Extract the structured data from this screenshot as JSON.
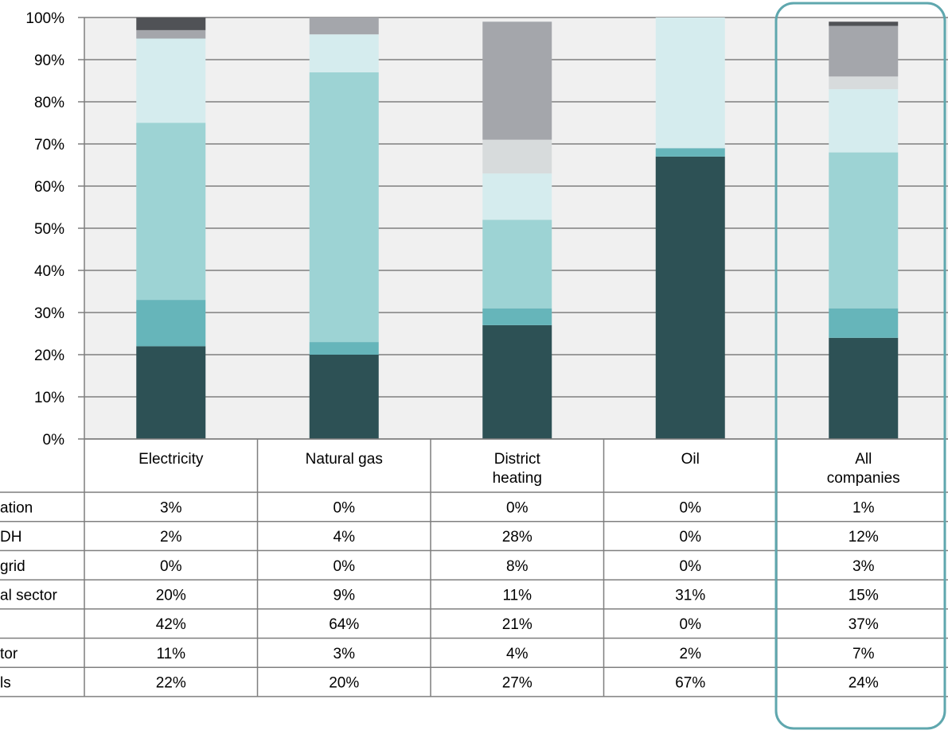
{
  "chart_data": {
    "type": "bar",
    "stacked": true,
    "categories": [
      "Electricity",
      "Natural gas",
      "District heating",
      "Oil",
      "All companies"
    ],
    "category_lines": [
      [
        "Electricity"
      ],
      [
        "Natural gas"
      ],
      [
        "District",
        "heating"
      ],
      [
        "Oil"
      ],
      [
        "All",
        "companies"
      ]
    ],
    "ylim": [
      0,
      100
    ],
    "y_ticks": [
      "0%",
      "10%",
      "20%",
      "30%",
      "40%",
      "50%",
      "60%",
      "70%",
      "80%",
      "90%",
      "100%"
    ],
    "grid": true,
    "highlight_category": "All companies",
    "series_bottom_to_top": [
      {
        "label": "ls",
        "color": "#2d5155",
        "values": [
          22,
          20,
          27,
          67,
          24
        ],
        "shown": [
          "22%",
          "20%",
          "27%",
          "67%",
          "24%"
        ]
      },
      {
        "label": "tor",
        "color": "#66b5ba",
        "values": [
          11,
          3,
          4,
          2,
          7
        ],
        "shown": [
          "11%",
          "3%",
          "4%",
          "2%",
          "7%"
        ]
      },
      {
        "label": "",
        "color": "#9dd3d4",
        "values": [
          42,
          64,
          21,
          0,
          37
        ],
        "shown": [
          "42%",
          "64%",
          "21%",
          "0%",
          "37%"
        ]
      },
      {
        "label": "al sector",
        "color": "#d5ecee",
        "values": [
          20,
          9,
          11,
          31,
          15
        ],
        "shown": [
          "20%",
          "9%",
          "11%",
          "31%",
          "15%"
        ]
      },
      {
        "label": "grid",
        "color": "#d7dbdc",
        "values": [
          0,
          0,
          8,
          0,
          3
        ],
        "shown": [
          "0%",
          "0%",
          "8%",
          "0%",
          "3%"
        ]
      },
      {
        "label": "DH",
        "color": "#a4a6ab",
        "values": [
          2,
          4,
          28,
          0,
          12
        ],
        "shown": [
          "2%",
          "4%",
          "28%",
          "0%",
          "12%"
        ]
      },
      {
        "label": "ation",
        "color": "#505256",
        "values": [
          3,
          0,
          0,
          0,
          1
        ],
        "shown": [
          "3%",
          "0%",
          "0%",
          "0%",
          "1%"
        ]
      }
    ],
    "table_rows_top_to_bottom": [
      6,
      5,
      4,
      3,
      2,
      1,
      0
    ]
  }
}
